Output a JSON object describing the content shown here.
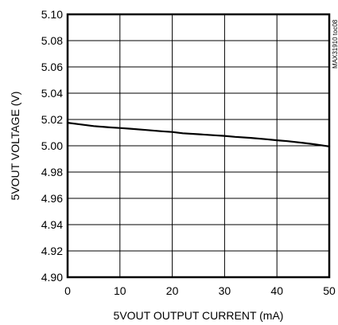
{
  "chart_data": {
    "type": "line",
    "title": "",
    "xlabel": "5VOUT OUTPUT CURRENT (mA)",
    "ylabel": "5VOUT VOLTAGE (V)",
    "xlim": [
      0,
      50
    ],
    "ylim": [
      4.9,
      5.1
    ],
    "x_ticks": [
      0,
      10,
      20,
      30,
      40,
      50
    ],
    "x_tick_labels": [
      "0",
      "10",
      "20",
      "30",
      "40",
      "50"
    ],
    "y_ticks": [
      4.9,
      4.92,
      4.94,
      4.96,
      4.98,
      5.0,
      5.02,
      5.04,
      5.06,
      5.08,
      5.1
    ],
    "y_tick_labels": [
      "4.90",
      "4.92",
      "4.94",
      "4.96",
      "4.98",
      "5.00",
      "5.02",
      "5.04",
      "5.06",
      "5.08",
      "5.10"
    ],
    "grid": true,
    "series": [
      {
        "x": [
          0,
          2,
          5,
          8,
          10,
          12,
          15,
          18,
          20,
          22,
          25,
          28,
          30,
          32,
          35,
          38,
          40,
          42,
          45,
          47,
          50
        ],
        "values": [
          5.0175,
          5.0165,
          5.015,
          5.014,
          5.0135,
          5.013,
          5.012,
          5.011,
          5.0105,
          5.0095,
          5.0088,
          5.008,
          5.0075,
          5.0068,
          5.006,
          5.005,
          5.0042,
          5.0035,
          5.0022,
          5.0012,
          4.9995
        ]
      }
    ],
    "annotation": "MAX31910 toc08",
    "colors": {
      "line": "#000000",
      "grid": "#000000",
      "background": "#ffffff"
    }
  }
}
